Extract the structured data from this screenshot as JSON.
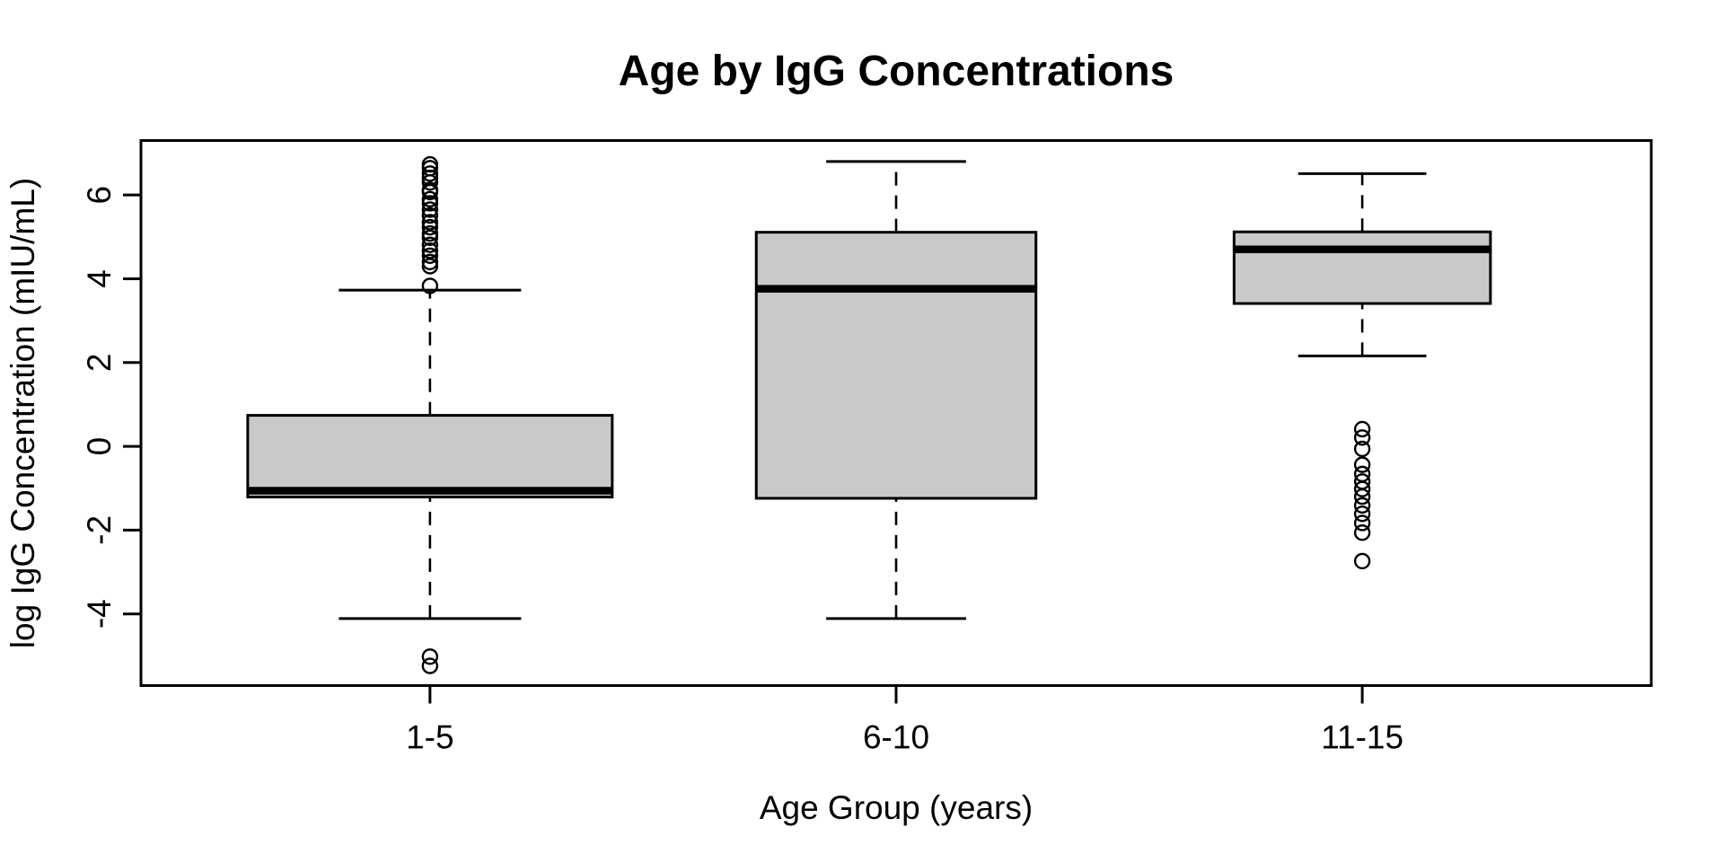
{
  "title": "Age by IgG Concentrations",
  "chart_data": {
    "type": "boxplot",
    "title": "Age by IgG Concentrations",
    "xlabel": "Age Group (years)",
    "ylabel": "log IgG Concentration (mIU/mL)",
    "categories": [
      "1-5",
      "6-10",
      "11-15"
    ],
    "xlim": [
      0.38,
      3.62
    ],
    "ylim": [
      -5.71,
      7.3
    ],
    "yticks": [
      6,
      4,
      2,
      0,
      -2,
      -4
    ],
    "grid": false,
    "legend": "none",
    "box_fill": "#C9C9C9",
    "stroke_color": "#000000",
    "background": "#FFFFFF",
    "groups": [
      {
        "label": "1-5",
        "x": 1,
        "box_halfwidth": 0.391,
        "whisker_low": -4.11,
        "q1": -1.21,
        "median": -1.06,
        "q3": 0.74,
        "whisker_high": 3.73,
        "outliers": [
          6.73,
          6.64,
          6.51,
          6.41,
          6.3,
          6.12,
          6.07,
          5.9,
          5.8,
          5.65,
          5.51,
          5.35,
          5.23,
          5.08,
          4.98,
          4.81,
          4.67,
          4.55,
          4.4,
          4.3,
          3.83,
          -5.02,
          -5.24
        ]
      },
      {
        "label": "6-10",
        "x": 2,
        "box_halfwidth": 0.3,
        "whisker_low": -4.11,
        "q1": -1.24,
        "median": 3.76,
        "q3": 5.11,
        "whisker_high": 6.8,
        "outliers": []
      },
      {
        "label": "11-15",
        "x": 3,
        "box_halfwidth": 0.275,
        "whisker_low": 2.16,
        "q1": 3.41,
        "median": 4.7,
        "q3": 5.12,
        "whisker_high": 6.51,
        "outliers": [
          0.41,
          0.21,
          -0.06,
          -0.44,
          -0.66,
          -0.84,
          -1.02,
          -1.2,
          -1.41,
          -1.61,
          -1.83,
          -2.06,
          -2.74
        ]
      }
    ]
  }
}
